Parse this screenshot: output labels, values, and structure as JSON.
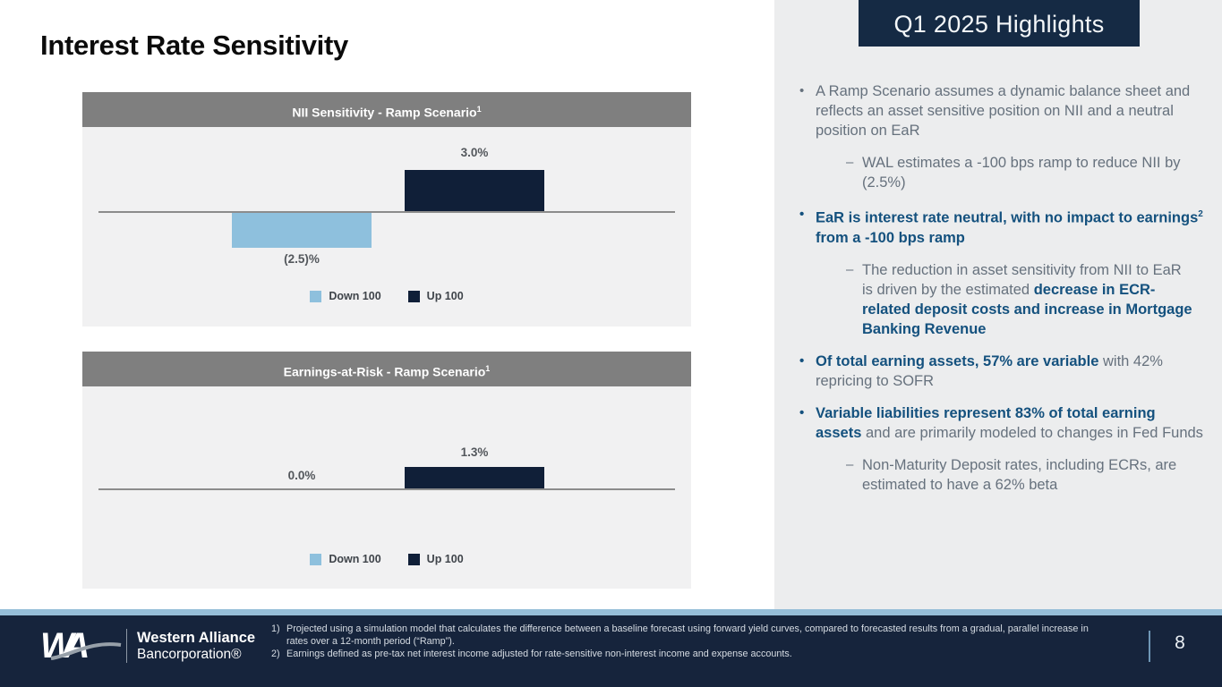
{
  "slide": {
    "title": "Interest Rate Sensitivity",
    "page_number": "8"
  },
  "chart_data": [
    {
      "type": "bar",
      "title": "NII Sensitivity - Ramp Scenario",
      "title_superscript": "1",
      "categories": [
        "Down 100",
        "Up 100"
      ],
      "series": [
        {
          "name": "Down 100",
          "value": -2.5,
          "label": "(2.5)%",
          "color": "#8ec0dd"
        },
        {
          "name": "Up 100",
          "value": 3.0,
          "label": "3.0%",
          "color": "#101f38"
        }
      ],
      "unit": "%",
      "baseline": 0,
      "legend_position": "bottom-center",
      "grid": false
    },
    {
      "type": "bar",
      "title": "Earnings-at-Risk - Ramp Scenario",
      "title_superscript": "1",
      "categories": [
        "Down 100",
        "Up 100"
      ],
      "series": [
        {
          "name": "Down 100",
          "value": 0.0,
          "label": "0.0%",
          "color": "#8ec0dd"
        },
        {
          "name": "Up 100",
          "value": 1.3,
          "label": "1.3%",
          "color": "#101f38"
        }
      ],
      "unit": "%",
      "baseline": 0,
      "legend_position": "bottom-center",
      "grid": false
    }
  ],
  "highlights": {
    "header": "Q1 2025 Highlights",
    "items": [
      {
        "type": "bullet",
        "runs": [
          {
            "text": "A Ramp Scenario assumes a dynamic balance sheet and reflects an asset sensitive position on NII and a neutral position on EaR",
            "bold": false
          }
        ]
      },
      {
        "type": "sub",
        "runs": [
          {
            "text": "WAL estimates a -100 bps ramp to reduce NII by (2.5%)",
            "bold": false
          }
        ]
      },
      {
        "type": "bullet",
        "runs": [
          {
            "text": "EaR is interest rate neutral, with no impact to earnings",
            "bold": true
          },
          {
            "text": "2",
            "bold": true,
            "sup": true
          },
          {
            "text": "  from a -100 bps ramp",
            "bold": true
          }
        ]
      },
      {
        "type": "sub",
        "runs": [
          {
            "text": "The reduction in asset sensitivity from NII to EaR is driven by the estimated ",
            "bold": false
          },
          {
            "text": "decrease in ECR-related deposit costs and increase in Mortgage Banking Revenue",
            "bold": true
          }
        ]
      },
      {
        "type": "bullet",
        "runs": [
          {
            "text": "Of total earning assets, 57% are variable",
            "bold": true
          },
          {
            "text": " with 42% repricing to SOFR",
            "bold": false
          }
        ]
      },
      {
        "type": "bullet",
        "runs": [
          {
            "text": "Variable liabilities represent 83% of total earning assets",
            "bold": true
          },
          {
            "text": " and are primarily modeled to changes in Fed Funds",
            "bold": false
          }
        ]
      },
      {
        "type": "sub",
        "runs": [
          {
            "text": "Non-Maturity Deposit rates, including ECRs, are estimated to have a 62% beta",
            "bold": false
          }
        ]
      }
    ]
  },
  "footer": {
    "logo_line1": "Western Alliance",
    "logo_line2": "Bancorporation®",
    "footnotes": [
      {
        "num": "1)",
        "text": "Projected using a simulation model that calculates the difference between a baseline forecast using forward yield curves, compared to forecasted results from a gradual, parallel increase in rates over a 12-month period (“Ramp”)."
      },
      {
        "num": "2)",
        "text": "Earnings defined as pre-tax net interest income adjusted for rate-sensitive non-interest income and expense accounts."
      }
    ]
  },
  "colors": {
    "bar_up_navy": "#101f38",
    "bar_down_light_blue": "#8ec0dd",
    "chart_header_gray": "#7f7f7f",
    "plot_background": "#f1f1f2",
    "panel_background": "#ecedee",
    "highlight_bold_blue": "#14517e",
    "body_text_gray": "#66717d",
    "footer_navy": "#16243c",
    "footer_strip_blue": "#96bed8"
  }
}
